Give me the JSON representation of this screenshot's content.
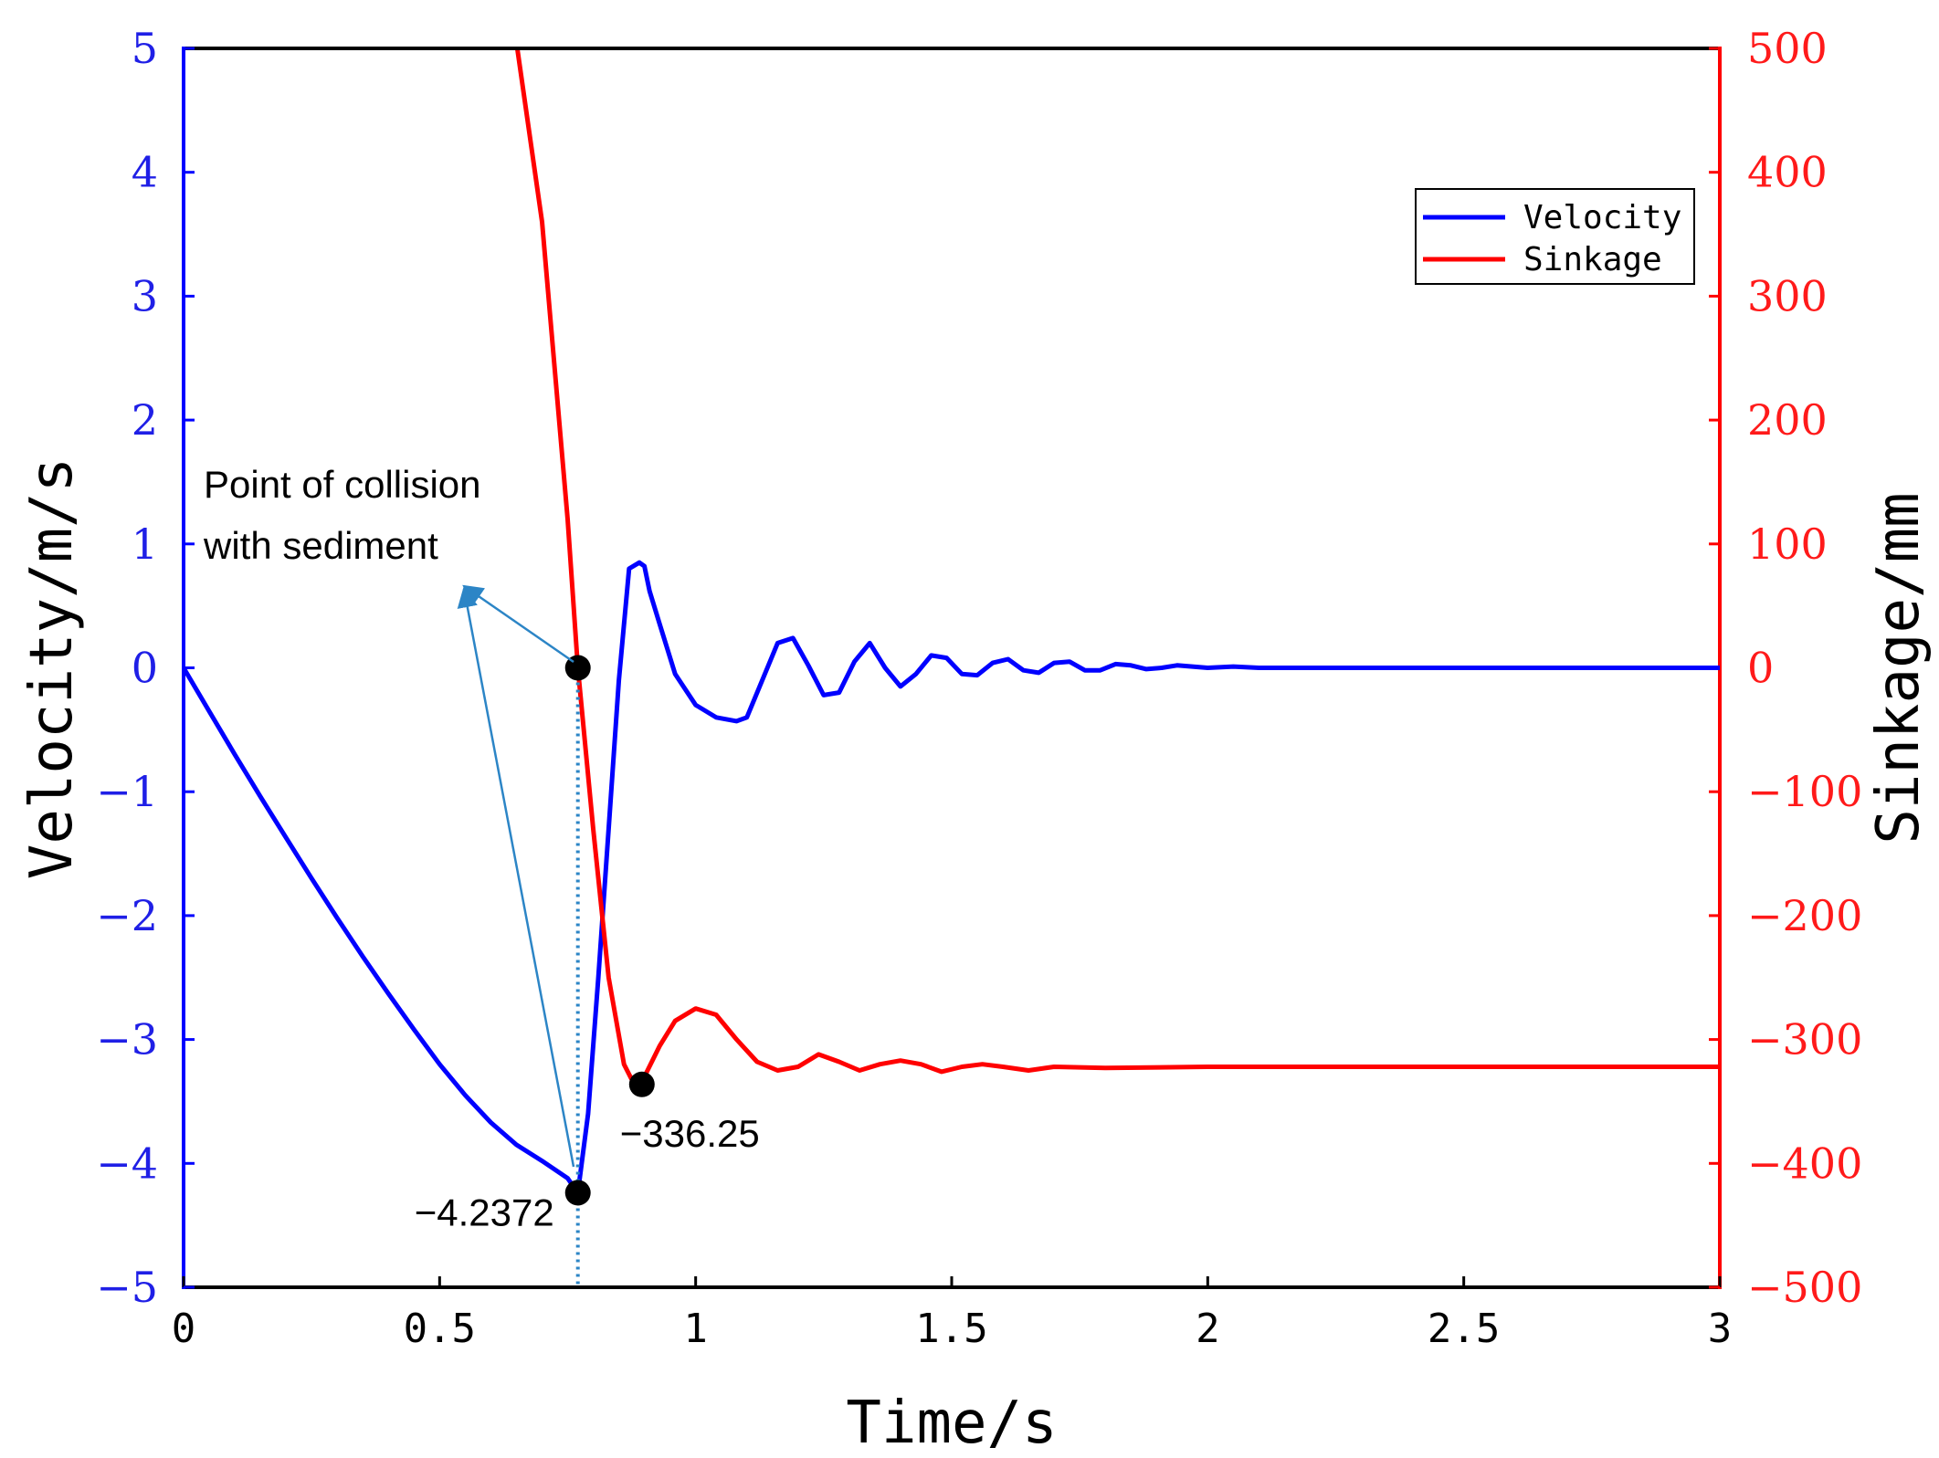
{
  "chart_data": {
    "type": "line",
    "x_axis": {
      "label": "Time/s",
      "range": [
        0,
        3
      ],
      "ticks": [
        0,
        0.5,
        1,
        1.5,
        2,
        2.5,
        3
      ],
      "tick_labels": [
        "0",
        "0.5",
        "1",
        "1.5",
        "2",
        "2.5",
        "3"
      ]
    },
    "y_left": {
      "label": "Velocity/m/s",
      "range": [
        -5,
        5
      ],
      "color": "#1f1fe6",
      "ticks": [
        5,
        4,
        3,
        2,
        1,
        0,
        -1,
        -2,
        -3,
        -4,
        -5
      ],
      "tick_labels": [
        "5",
        "4",
        "3",
        "2",
        "1",
        "0",
        "−1",
        "−2",
        "−3",
        "−4",
        "−5"
      ]
    },
    "y_right": {
      "label": "Sinkage/mm",
      "range": [
        -500,
        500
      ],
      "color": "#ff1a1a",
      "ticks": [
        500,
        400,
        300,
        200,
        100,
        0,
        -100,
        -200,
        -300,
        -400,
        -500
      ],
      "tick_labels": [
        "500",
        "400",
        "300",
        "200",
        "100",
        "0",
        "−100",
        "−200",
        "−300",
        "−400",
        "−500"
      ]
    },
    "legend": {
      "position": "top-right",
      "entries": [
        {
          "name": "Velocity",
          "color": "#0000ff"
        },
        {
          "name": "Sinkage",
          "color": "#ff0000"
        }
      ]
    },
    "series": [
      {
        "name": "Velocity",
        "axis": "left",
        "color": "#0000ff",
        "x": [
          0,
          0.05,
          0.1,
          0.15,
          0.2,
          0.25,
          0.3,
          0.35,
          0.4,
          0.45,
          0.5,
          0.55,
          0.6,
          0.65,
          0.7,
          0.75,
          0.77,
          0.79,
          0.81,
          0.83,
          0.85,
          0.87,
          0.89,
          0.9,
          0.91,
          0.93,
          0.96,
          1.0,
          1.04,
          1.08,
          1.1,
          1.13,
          1.16,
          1.19,
          1.22,
          1.25,
          1.28,
          1.31,
          1.34,
          1.37,
          1.4,
          1.43,
          1.46,
          1.49,
          1.52,
          1.55,
          1.58,
          1.61,
          1.64,
          1.67,
          1.7,
          1.73,
          1.76,
          1.79,
          1.82,
          1.85,
          1.88,
          1.91,
          1.94,
          1.97,
          2.0,
          2.05,
          2.1,
          2.2,
          2.4,
          2.6,
          2.8,
          3.0
        ],
        "y": [
          0,
          -0.35,
          -0.7,
          -1.04,
          -1.37,
          -1.7,
          -2.02,
          -2.33,
          -2.63,
          -2.92,
          -3.2,
          -3.45,
          -3.67,
          -3.85,
          -3.98,
          -4.12,
          -4.2372,
          -3.6,
          -2.5,
          -1.3,
          -0.1,
          0.8,
          0.85,
          0.82,
          0.62,
          0.35,
          -0.05,
          -0.3,
          -0.4,
          -0.43,
          -0.4,
          -0.1,
          0.2,
          0.24,
          0.02,
          -0.22,
          -0.2,
          0.05,
          0.2,
          0.0,
          -0.15,
          -0.05,
          0.1,
          0.08,
          -0.05,
          -0.06,
          0.04,
          0.07,
          -0.02,
          -0.04,
          0.04,
          0.05,
          -0.02,
          -0.02,
          0.03,
          0.02,
          -0.01,
          0.0,
          0.02,
          0.01,
          0.0,
          0.01,
          0.0,
          0.0,
          0.0,
          0.0,
          0.0,
          0.0
        ]
      },
      {
        "name": "Sinkage",
        "axis": "right",
        "color": "#ff0000",
        "x": [
          0.65,
          0.7,
          0.75,
          0.77,
          0.8,
          0.83,
          0.86,
          0.88,
          0.9,
          0.93,
          0.96,
          1.0,
          1.04,
          1.08,
          1.12,
          1.16,
          1.2,
          1.24,
          1.28,
          1.32,
          1.36,
          1.4,
          1.44,
          1.48,
          1.52,
          1.56,
          1.6,
          1.65,
          1.7,
          1.8,
          2.0,
          2.2,
          2.5,
          3.0
        ],
        "y": [
          505,
          360,
          120,
          0,
          -130,
          -250,
          -320,
          -336.25,
          -330,
          -305,
          -285,
          -275,
          -280,
          -300,
          -318,
          -325,
          -322,
          -312,
          -318,
          -325,
          -320,
          -317,
          -320,
          -326,
          -322,
          -320,
          -322,
          -325,
          -322,
          -323,
          -322,
          -322,
          -322,
          -322
        ]
      }
    ],
    "markers": [
      {
        "x": 0.77,
        "axis": "left",
        "y": -4.2372,
        "label": "−4.2372"
      },
      {
        "x": 0.77,
        "axis": "right",
        "y": 0,
        "label": ""
      },
      {
        "x": 0.895,
        "axis": "right",
        "y": -336.25,
        "label": "−336.25"
      }
    ],
    "annotation": {
      "lines": [
        "Point of collision",
        "with sediment"
      ]
    },
    "collision_line_x": 0.77
  }
}
